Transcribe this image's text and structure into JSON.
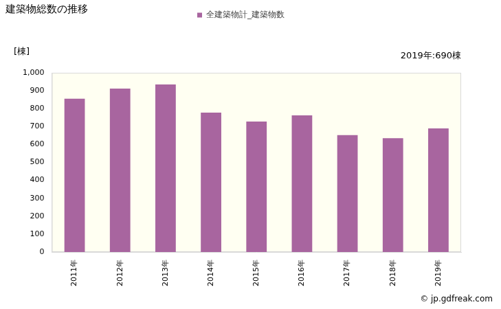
{
  "chart_data": {
    "type": "bar",
    "title": "建築物総数の推移",
    "y_label": "[棟]",
    "annotation": "2019年:690棟",
    "source": "© jp.gdfreak.com",
    "categories": [
      "2011年",
      "2012年",
      "2013年",
      "2014年",
      "2015年",
      "2016年",
      "2017年",
      "2018年",
      "2019年"
    ],
    "series": [
      {
        "name": "全建築物計_建築物数",
        "color": "#a8659f",
        "values": [
          855,
          912,
          935,
          778,
          728,
          762,
          652,
          635,
          690
        ]
      }
    ],
    "ylim": [
      0,
      1000
    ],
    "yticks": [
      0,
      100,
      200,
      300,
      400,
      500,
      600,
      700,
      800,
      900,
      {
        "value": 1000,
        "label": "1,000"
      }
    ],
    "legend": "top",
    "grid": false
  }
}
